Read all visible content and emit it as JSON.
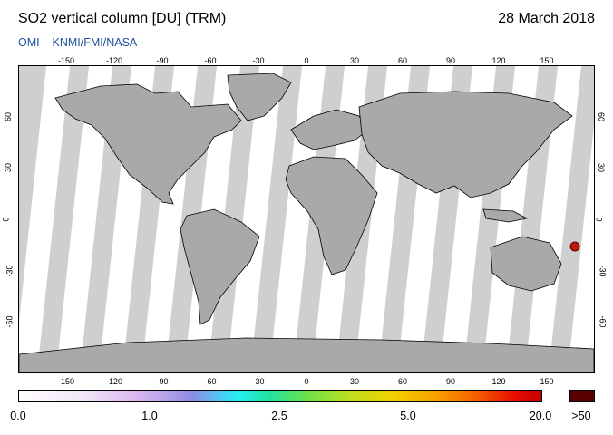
{
  "header": {
    "title": "SO2 vertical column [DU] (TRM)",
    "date": "28 March 2018",
    "credit": "OMI  –  KNMI/FMI/NASA"
  },
  "map": {
    "lon_ticks": [
      "-150",
      "-120",
      "-90",
      "-60",
      "-30",
      "0",
      "30",
      "60",
      "90",
      "120",
      "150"
    ],
    "lat_ticks": [
      "60",
      "30",
      "0",
      "-30",
      "-60"
    ],
    "colors": {
      "no_data": "#cfcfcf",
      "land": "#a9a9a9",
      "swath": "#ffffff",
      "coast": "#000000",
      "hotspot": "#c0150a"
    },
    "hotspot_location": {
      "lon": 168,
      "lat": -16
    }
  },
  "colorbar": {
    "labels": [
      "0.0",
      "1.0",
      "2.5",
      "5.0",
      "20.0"
    ],
    "over_label": ">50",
    "over_color": "#5a0000"
  }
}
